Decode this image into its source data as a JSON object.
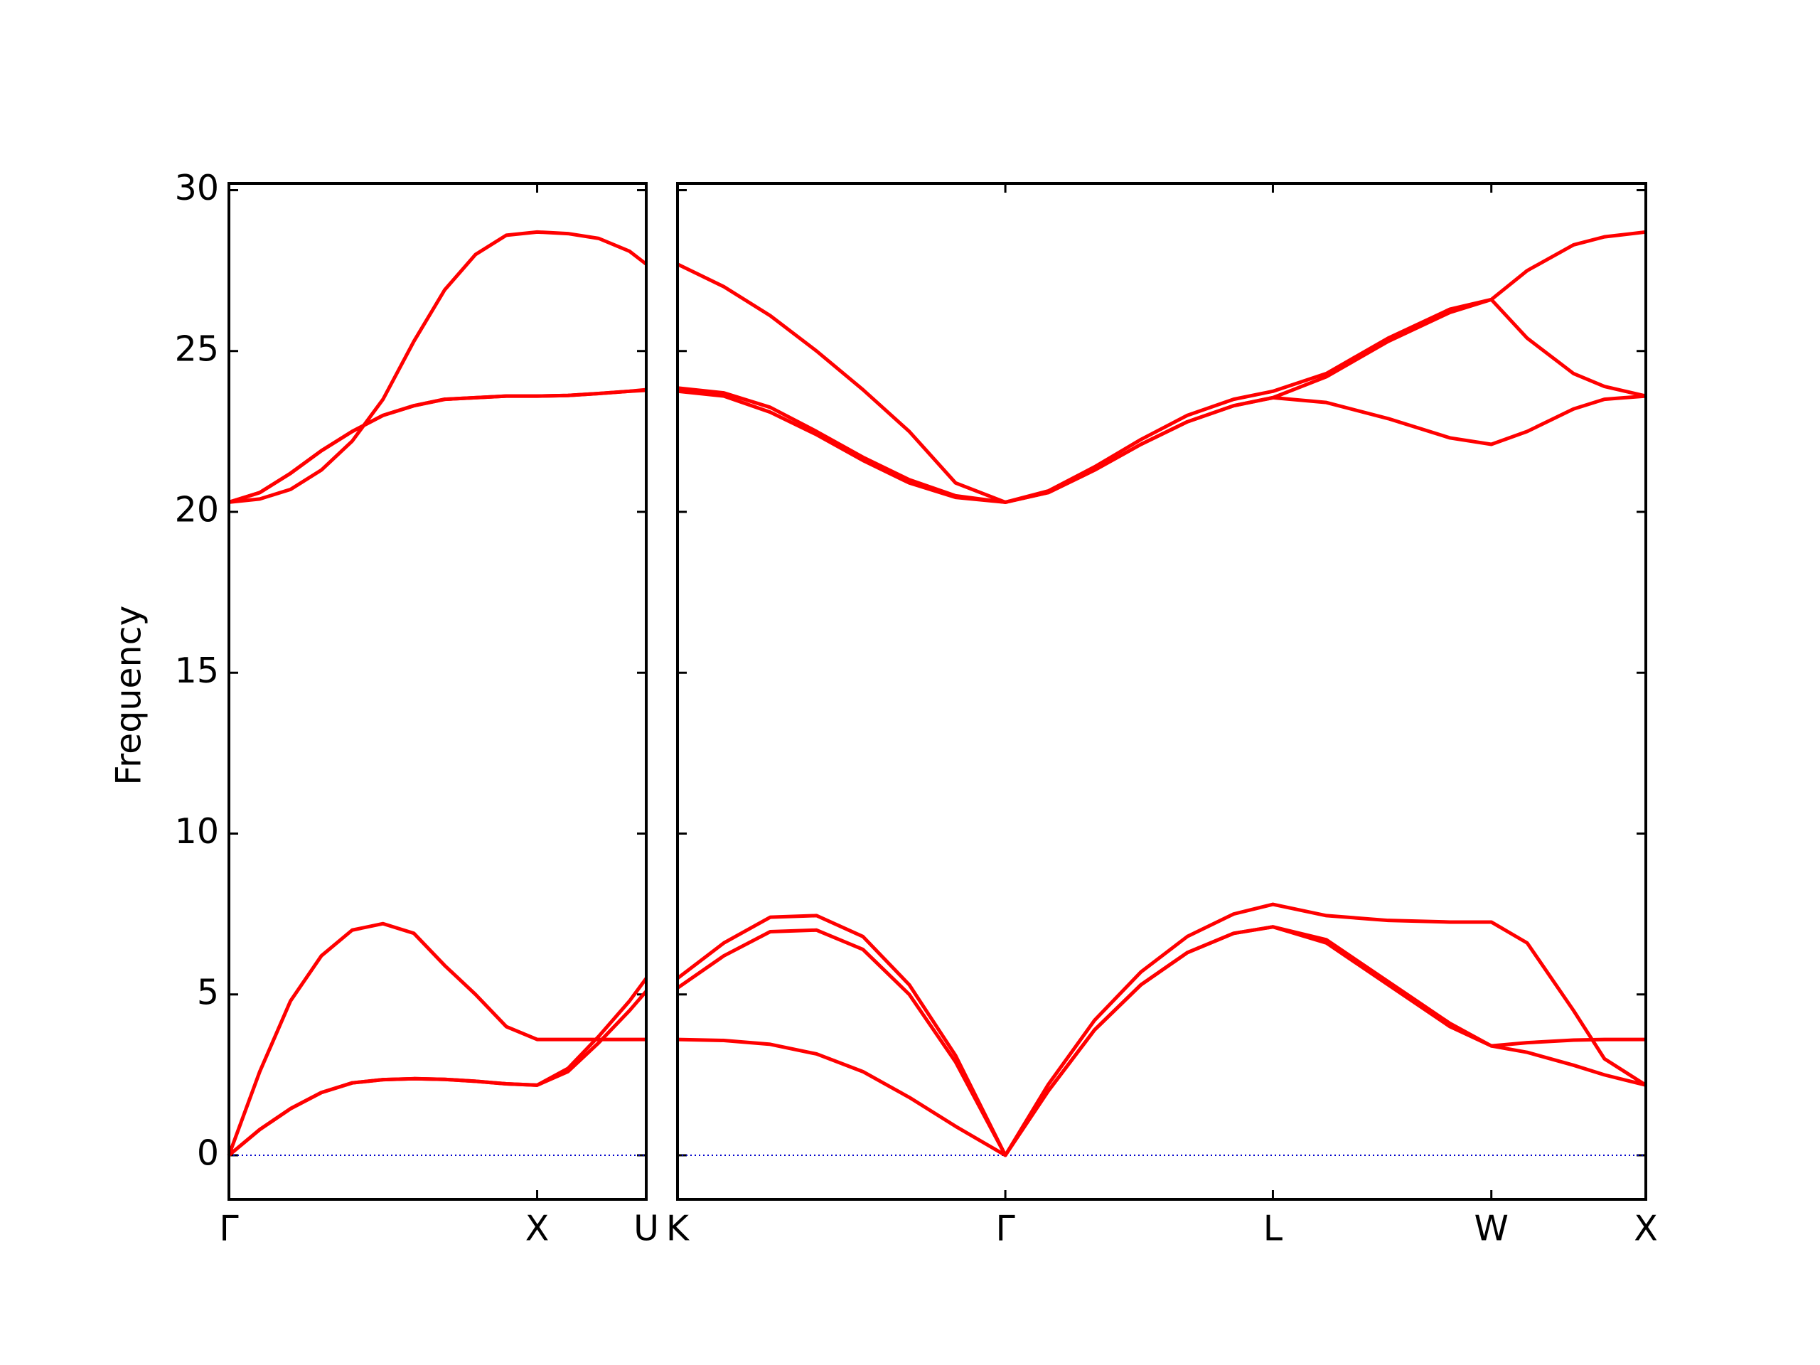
{
  "chart_data": [
    {
      "type": "line",
      "ylabel": "Frequency",
      "x": [
        0,
        0.1,
        0.2,
        0.3,
        0.4,
        0.5,
        0.6,
        0.7,
        0.8,
        0.9,
        1.0,
        1.1,
        1.2,
        1.3,
        1.354
      ],
      "xlim": [
        0,
        1.354
      ],
      "ylim": [
        -1.37,
        30.21
      ],
      "xticks": [
        {
          "value": 0,
          "label": "Γ"
        },
        {
          "value": 1.0,
          "label": "X"
        },
        {
          "value": 1.354,
          "label": "U"
        }
      ],
      "yticks": [
        0,
        5,
        10,
        15,
        20,
        25,
        30
      ],
      "series": [
        {
          "color": "#ff0000",
          "values": [
            0,
            0.8,
            1.45,
            1.95,
            2.25,
            2.35,
            2.38,
            2.36,
            2.3,
            2.22,
            2.18,
            2.6,
            3.5,
            4.5,
            5.1
          ]
        },
        {
          "color": "#ff0000",
          "values": [
            0,
            0.8,
            1.45,
            1.95,
            2.25,
            2.35,
            2.38,
            2.36,
            2.3,
            2.22,
            2.18,
            2.7,
            3.7,
            4.8,
            5.5
          ]
        },
        {
          "color": "#ff0000",
          "values": [
            0,
            2.6,
            4.8,
            6.2,
            7.0,
            7.2,
            6.9,
            5.9,
            5.0,
            4.0,
            3.6,
            3.6,
            3.6,
            3.6,
            3.6
          ]
        },
        {
          "color": "#ff0000",
          "values": [
            20.3,
            20.6,
            21.2,
            21.9,
            22.5,
            23.0,
            23.3,
            23.5,
            23.55,
            23.6,
            23.6,
            23.62,
            23.68,
            23.75,
            23.8
          ]
        },
        {
          "color": "#ff0000",
          "values": [
            20.3,
            20.6,
            21.2,
            21.9,
            22.5,
            23.0,
            23.3,
            23.5,
            23.55,
            23.6,
            23.6,
            23.62,
            23.68,
            23.75,
            23.78
          ]
        },
        {
          "color": "#ff0000",
          "values": [
            20.3,
            20.4,
            20.7,
            21.3,
            22.2,
            23.5,
            25.3,
            26.9,
            28.0,
            28.6,
            28.7,
            28.65,
            28.5,
            28.1,
            27.7
          ]
        }
      ]
    },
    {
      "type": "line",
      "x": [
        0,
        0.15,
        0.3,
        0.45,
        0.6,
        0.75,
        0.9,
        1.061,
        1.2,
        1.35,
        1.5,
        1.65,
        1.8,
        1.927,
        2.1,
        2.3,
        2.5,
        2.634,
        2.75,
        2.9,
        3.0,
        3.134
      ],
      "xlim": [
        0,
        3.134
      ],
      "ylim": [
        -1.37,
        30.21
      ],
      "xticks": [
        {
          "value": 0,
          "label": "K"
        },
        {
          "value": 1.061,
          "label": "Γ"
        },
        {
          "value": 1.927,
          "label": "L"
        },
        {
          "value": 2.634,
          "label": "W"
        },
        {
          "value": 3.134,
          "label": "X"
        }
      ],
      "yticks": [
        0,
        5,
        10,
        15,
        20,
        25,
        30
      ],
      "series": [
        {
          "color": "#ff0000",
          "values": [
            3.6,
            3.57,
            3.45,
            3.15,
            2.6,
            1.8,
            0.9,
            0,
            2.0,
            3.9,
            5.3,
            6.3,
            6.9,
            7.1,
            6.6,
            5.3,
            4.0,
            3.4,
            3.2,
            2.8,
            2.5,
            2.18
          ]
        },
        {
          "color": "#ff0000",
          "values": [
            5.2,
            6.2,
            6.95,
            7.0,
            6.4,
            5.0,
            2.9,
            0,
            2.0,
            3.9,
            5.3,
            6.3,
            6.9,
            7.1,
            6.7,
            5.4,
            4.1,
            3.4,
            3.5,
            3.58,
            3.6,
            3.6
          ]
        },
        {
          "color": "#ff0000",
          "values": [
            5.5,
            6.6,
            7.4,
            7.45,
            6.8,
            5.3,
            3.1,
            0,
            2.2,
            4.2,
            5.7,
            6.8,
            7.5,
            7.8,
            7.45,
            7.3,
            7.25,
            7.25,
            6.6,
            4.5,
            3.0,
            2.18
          ]
        },
        {
          "color": "#ff0000",
          "values": [
            27.7,
            27.0,
            26.1,
            25.0,
            23.8,
            22.5,
            20.9,
            20.3,
            20.65,
            21.4,
            22.25,
            23.0,
            23.5,
            23.75,
            24.3,
            25.4,
            26.3,
            26.6,
            27.5,
            28.3,
            28.55,
            28.7
          ]
        },
        {
          "color": "#ff0000",
          "values": [
            23.85,
            23.7,
            23.25,
            22.5,
            21.7,
            21.0,
            20.5,
            20.3,
            20.6,
            21.3,
            22.1,
            22.8,
            23.3,
            23.55,
            24.2,
            25.3,
            26.2,
            26.6,
            25.4,
            24.3,
            23.9,
            23.6
          ]
        },
        {
          "color": "#ff0000",
          "values": [
            23.75,
            23.6,
            23.1,
            22.4,
            21.6,
            20.9,
            20.45,
            20.3,
            20.6,
            21.3,
            22.1,
            22.8,
            23.3,
            23.55,
            23.4,
            22.9,
            22.3,
            22.1,
            22.5,
            23.2,
            23.5,
            23.6
          ]
        }
      ]
    }
  ]
}
